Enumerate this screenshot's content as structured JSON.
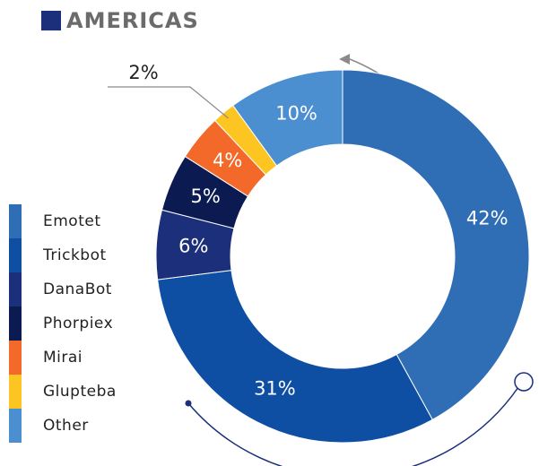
{
  "chart_data": {
    "type": "donut",
    "title": "AMERICAS",
    "categories": [
      "Emotet",
      "Trickbot",
      "DanaBot",
      "Phorpiex",
      "Mirai",
      "Glupteba",
      "Other"
    ],
    "values": [
      42,
      31,
      6,
      5,
      4,
      2,
      10
    ],
    "value_labels": [
      "42%",
      "31%",
      "6%",
      "5%",
      "4%",
      "2%",
      "10%"
    ],
    "colors": [
      "#2f6eb5",
      "#0e4fa3",
      "#1b2f7b",
      "#0b1b52",
      "#f2692a",
      "#fdc521",
      "#4b8fd1"
    ],
    "legend": "left"
  }
}
